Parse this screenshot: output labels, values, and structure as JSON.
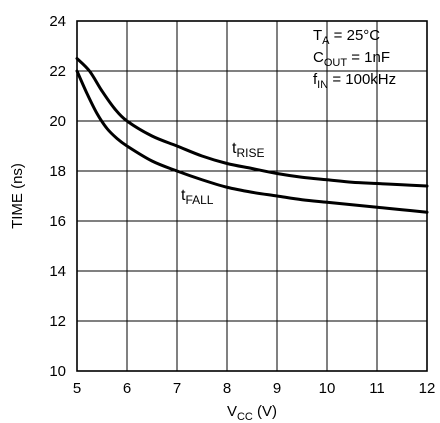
{
  "chart_data": {
    "type": "line",
    "title": "",
    "xlabel": {
      "main": "V",
      "sub": "CC",
      "suffix": " (V)"
    },
    "ylabel": "TIME (ns)",
    "xlim": [
      5,
      12
    ],
    "ylim": [
      10,
      24
    ],
    "xticks": [
      5,
      6,
      7,
      8,
      9,
      10,
      11,
      12
    ],
    "yticks": [
      10,
      12,
      14,
      16,
      18,
      20,
      22,
      24
    ],
    "grid": true,
    "conditions": [
      {
        "main": "T",
        "sub": "A",
        "rest": " = 25°C"
      },
      {
        "main": "C",
        "sub": "OUT",
        "rest": " = 1nF"
      },
      {
        "main": "f",
        "sub": "IN",
        "rest": " = 100kHz"
      }
    ],
    "series": [
      {
        "name": "tRISE",
        "label_main": "t",
        "label_sub": "RISE",
        "x": [
          5,
          5.25,
          5.5,
          5.75,
          6,
          6.5,
          7,
          7.5,
          8,
          8.5,
          9,
          9.5,
          10,
          10.5,
          11,
          11.5,
          12
        ],
        "y": [
          22.5,
          22.0,
          21.2,
          20.5,
          20.0,
          19.4,
          19.0,
          18.6,
          18.3,
          18.1,
          17.9,
          17.75,
          17.65,
          17.55,
          17.5,
          17.45,
          17.4
        ]
      },
      {
        "name": "tFALL",
        "label_main": "t",
        "label_sub": "FALL",
        "x": [
          5,
          5.2,
          5.4,
          5.6,
          5.8,
          6,
          6.5,
          7,
          7.5,
          8,
          8.5,
          9,
          9.5,
          10,
          10.5,
          11,
          11.5,
          12
        ],
        "y": [
          22.0,
          21.1,
          20.3,
          19.7,
          19.3,
          19.0,
          18.4,
          18.0,
          17.65,
          17.35,
          17.15,
          17.0,
          16.85,
          16.75,
          16.65,
          16.55,
          16.45,
          16.35
        ]
      }
    ]
  }
}
